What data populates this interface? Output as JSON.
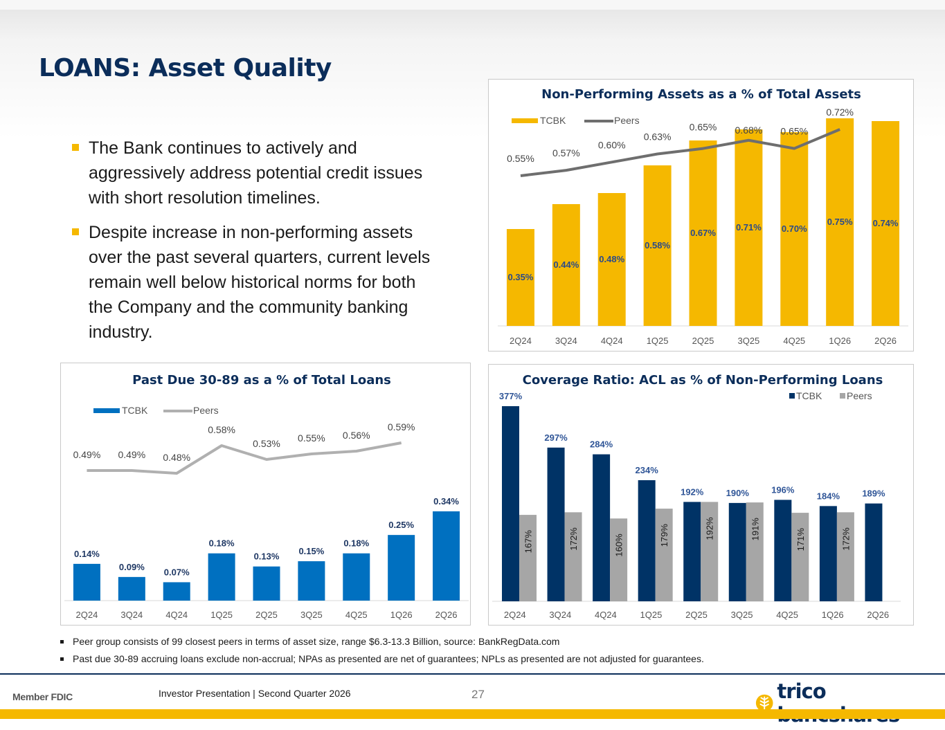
{
  "title": "LOANS: Asset Quality",
  "bullets": [
    "The Bank continues to actively and aggressively address potential credit issues with short resolution timelines.",
    "Despite increase in non-performing assets over the past several quarters, current levels remain well below historical norms for both the Company and the community banking industry."
  ],
  "footnotes": [
    "Peer group consists of 99 closest peers in terms of asset size, range $6.3-13.3 Billion, source: BankRegData.com",
    "Past due 30-89 accruing loans exclude non-accrual; NPAs as presented are net of guarantees; NPLs as presented are not adjusted for guarantees."
  ],
  "footer": {
    "member": "Member FDIC",
    "presentation": "Investor Presentation  |  Second Quarter 2026",
    "page": "27",
    "logo": "trico bancshares"
  },
  "colors": {
    "navy": "#0b2d5a",
    "gold": "#f5b800",
    "blue": "#0070c0",
    "dark_navy": "#003366",
    "gray_bar": "#a6a6a6",
    "gray_line": "#6e6e6e",
    "light_gray_line": "#b0b0b0"
  },
  "chart_data": [
    {
      "type": "bar",
      "id": "npa",
      "title": "Non-Performing Assets as a % of Total Assets",
      "categories": [
        "2Q24",
        "3Q24",
        "4Q24",
        "1Q25",
        "2Q25",
        "3Q25",
        "4Q25",
        "1Q26",
        "2Q26"
      ],
      "series": [
        {
          "name": "TCBK",
          "kind": "bar",
          "values": [
            0.35,
            0.44,
            0.48,
            0.58,
            0.67,
            0.71,
            0.7,
            0.75,
            0.74
          ],
          "labels": [
            "0.35%",
            "0.44%",
            "0.48%",
            "0.58%",
            "0.67%",
            "0.71%",
            "0.70%",
            "0.75%",
            "0.74%"
          ]
        },
        {
          "name": "Peers",
          "kind": "line",
          "values": [
            0.55,
            0.57,
            0.6,
            0.63,
            0.65,
            0.68,
            0.65,
            0.72,
            null
          ],
          "labels": [
            "0.55%",
            "0.57%",
            "0.60%",
            "0.63%",
            "0.65%",
            "0.68%",
            "0.65%",
            "0.72%",
            ""
          ]
        }
      ],
      "ylim": [
        0,
        0.74
      ],
      "legend": "top-left"
    },
    {
      "type": "bar",
      "id": "pd",
      "title": "Past Due 30-89 as a % of Total Loans",
      "categories": [
        "2Q24",
        "3Q24",
        "4Q24",
        "1Q25",
        "2Q25",
        "3Q25",
        "4Q25",
        "1Q26",
        "2Q26"
      ],
      "series": [
        {
          "name": "TCBK",
          "kind": "bar",
          "values": [
            0.14,
            0.09,
            0.07,
            0.18,
            0.13,
            0.15,
            0.18,
            0.25,
            0.34
          ],
          "labels": [
            "0.14%",
            "0.09%",
            "0.07%",
            "0.18%",
            "0.13%",
            "0.15%",
            "0.18%",
            "0.25%",
            "0.34%"
          ]
        },
        {
          "name": "Peers",
          "kind": "line",
          "values": [
            0.49,
            0.49,
            0.48,
            0.58,
            0.53,
            0.55,
            0.56,
            0.59,
            null
          ],
          "labels": [
            "0.49%",
            "0.49%",
            "0.48%",
            "0.58%",
            "0.53%",
            "0.55%",
            "0.56%",
            "0.59%",
            ""
          ]
        }
      ],
      "ylim": [
        0,
        0.7
      ],
      "legend": "top-left"
    },
    {
      "type": "bar",
      "id": "cov",
      "title": "Coverage Ratio:  ACL as % of Non-Performing Loans",
      "categories": [
        "2Q24",
        "3Q24",
        "4Q24",
        "1Q25",
        "2Q25",
        "3Q25",
        "4Q25",
        "1Q26",
        "2Q26"
      ],
      "series": [
        {
          "name": "TCBK",
          "kind": "bar",
          "values": [
            377,
            297,
            284,
            234,
            192,
            190,
            196,
            184,
            189
          ],
          "labels": [
            "377%",
            "297%",
            "284%",
            "234%",
            "192%",
            "190%",
            "196%",
            "184%",
            "189%"
          ]
        },
        {
          "name": "Peers",
          "kind": "bar",
          "values": [
            167,
            172,
            160,
            179,
            192,
            191,
            171,
            172,
            null
          ],
          "labels": [
            "167%",
            "172%",
            "160%",
            "179%",
            "192%",
            "191%",
            "171%",
            "172%",
            ""
          ]
        }
      ],
      "ylim": [
        0,
        377
      ],
      "legend": "top-right"
    }
  ]
}
